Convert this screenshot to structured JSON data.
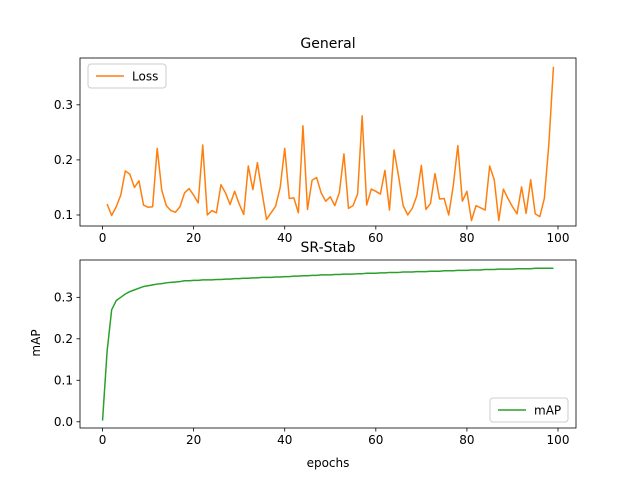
{
  "chart_data": [
    {
      "type": "line",
      "title": "General",
      "xlabel": "",
      "ylabel": "",
      "xlim": [
        -4.95,
        103.95
      ],
      "ylim": [
        0.08,
        0.385
      ],
      "xticks": [
        0,
        20,
        40,
        60,
        80,
        100
      ],
      "yticks": [
        0.1,
        0.2,
        0.3
      ],
      "xtick_labels": [
        "0",
        "20",
        "40",
        "60",
        "80",
        "100"
      ],
      "ytick_labels": [
        "0.1",
        "0.2",
        "0.3"
      ],
      "legend_position": "upper-left",
      "grid": false,
      "series": [
        {
          "name": "Loss",
          "color": "#ff7f0e",
          "x": [
            1,
            2,
            3,
            4,
            5,
            6,
            7,
            8,
            9,
            10,
            11,
            12,
            13,
            14,
            15,
            16,
            17,
            18,
            19,
            20,
            21,
            22,
            23,
            24,
            25,
            26,
            27,
            28,
            29,
            30,
            31,
            32,
            33,
            34,
            35,
            36,
            37,
            38,
            39,
            40,
            41,
            42,
            43,
            44,
            45,
            46,
            47,
            48,
            49,
            50,
            51,
            52,
            53,
            54,
            55,
            56,
            57,
            58,
            59,
            60,
            61,
            62,
            63,
            64,
            65,
            66,
            67,
            68,
            69,
            70,
            71,
            72,
            73,
            74,
            75,
            76,
            77,
            78,
            79,
            80,
            81,
            82,
            83,
            84,
            85,
            86,
            87,
            88,
            89,
            90,
            91,
            92,
            93,
            94,
            95,
            96,
            97,
            98,
            99
          ],
          "y": [
            0.12,
            0.099,
            0.115,
            0.136,
            0.18,
            0.174,
            0.15,
            0.162,
            0.118,
            0.114,
            0.115,
            0.221,
            0.145,
            0.117,
            0.108,
            0.105,
            0.115,
            0.14,
            0.148,
            0.136,
            0.122,
            0.227,
            0.1,
            0.108,
            0.104,
            0.155,
            0.14,
            0.119,
            0.143,
            0.12,
            0.101,
            0.189,
            0.146,
            0.195,
            0.142,
            0.092,
            0.104,
            0.116,
            0.15,
            0.221,
            0.13,
            0.131,
            0.104,
            0.262,
            0.11,
            0.163,
            0.168,
            0.14,
            0.125,
            0.133,
            0.117,
            0.141,
            0.211,
            0.112,
            0.117,
            0.138,
            0.28,
            0.118,
            0.147,
            0.143,
            0.138,
            0.181,
            0.109,
            0.218,
            0.17,
            0.117,
            0.1,
            0.112,
            0.135,
            0.19,
            0.11,
            0.121,
            0.175,
            0.129,
            0.13,
            0.1,
            0.153,
            0.226,
            0.125,
            0.143,
            0.09,
            0.117,
            0.113,
            0.109,
            0.189,
            0.164,
            0.09,
            0.147,
            0.13,
            0.115,
            0.102,
            0.151,
            0.103,
            0.164,
            0.102,
            0.097,
            0.13,
            0.23,
            0.369
          ]
        }
      ]
    },
    {
      "type": "line",
      "title": "SR-Stab",
      "xlabel": "epochs",
      "ylabel": "mAP",
      "xlim": [
        -4.95,
        103.95
      ],
      "ylim": [
        -0.015,
        0.39
      ],
      "xticks": [
        0,
        20,
        40,
        60,
        80,
        100
      ],
      "yticks": [
        0.0,
        0.1,
        0.2,
        0.3
      ],
      "xtick_labels": [
        "0",
        "20",
        "40",
        "60",
        "80",
        "100"
      ],
      "ytick_labels": [
        "0.0",
        "0.1",
        "0.2",
        "0.3"
      ],
      "legend_position": "lower-right",
      "grid": false,
      "series": [
        {
          "name": "mAP",
          "color": "#2ca02c",
          "x": [
            0,
            1,
            2,
            3,
            4,
            5,
            6,
            7,
            8,
            9,
            10,
            11,
            12,
            13,
            14,
            15,
            16,
            17,
            18,
            19,
            20,
            21,
            22,
            23,
            24,
            25,
            26,
            27,
            28,
            29,
            30,
            31,
            32,
            33,
            34,
            35,
            36,
            37,
            38,
            39,
            40,
            41,
            42,
            43,
            44,
            45,
            46,
            47,
            48,
            49,
            50,
            51,
            52,
            53,
            54,
            55,
            56,
            57,
            58,
            59,
            60,
            61,
            62,
            63,
            64,
            65,
            66,
            67,
            68,
            69,
            70,
            71,
            72,
            73,
            74,
            75,
            76,
            77,
            78,
            79,
            80,
            81,
            82,
            83,
            84,
            85,
            86,
            87,
            88,
            89,
            90,
            91,
            92,
            93,
            94,
            95,
            96,
            97,
            98,
            99
          ],
          "y": [
            0.003,
            0.17,
            0.27,
            0.292,
            0.3,
            0.308,
            0.314,
            0.318,
            0.322,
            0.326,
            0.328,
            0.33,
            0.332,
            0.333,
            0.335,
            0.336,
            0.337,
            0.338,
            0.34,
            0.34,
            0.341,
            0.341,
            0.342,
            0.342,
            0.342,
            0.343,
            0.343,
            0.344,
            0.344,
            0.345,
            0.345,
            0.346,
            0.346,
            0.347,
            0.347,
            0.348,
            0.348,
            0.348,
            0.349,
            0.349,
            0.35,
            0.35,
            0.351,
            0.351,
            0.352,
            0.352,
            0.353,
            0.353,
            0.354,
            0.354,
            0.354,
            0.355,
            0.355,
            0.356,
            0.356,
            0.356,
            0.357,
            0.357,
            0.358,
            0.358,
            0.358,
            0.359,
            0.359,
            0.36,
            0.36,
            0.36,
            0.361,
            0.361,
            0.361,
            0.362,
            0.362,
            0.362,
            0.363,
            0.363,
            0.363,
            0.364,
            0.364,
            0.364,
            0.365,
            0.365,
            0.365,
            0.366,
            0.366,
            0.366,
            0.367,
            0.367,
            0.367,
            0.368,
            0.368,
            0.368,
            0.368,
            0.369,
            0.369,
            0.369,
            0.369,
            0.37,
            0.37,
            0.37,
            0.37,
            0.37
          ]
        }
      ]
    }
  ]
}
